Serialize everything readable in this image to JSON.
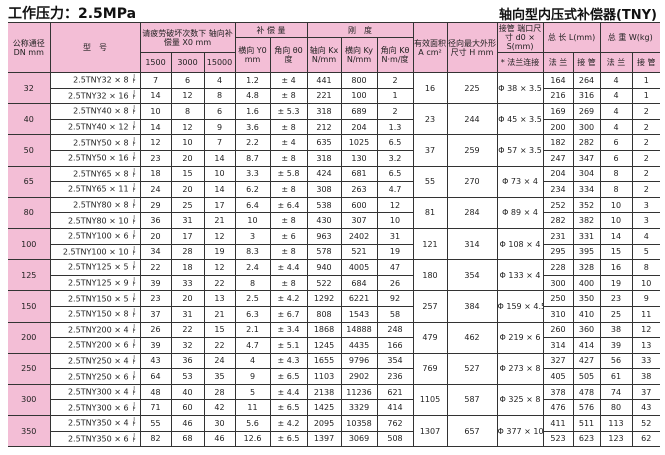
{
  "title_left": "工作压力：2.5MPa",
  "title_right": "轴向型内压式补偿器(TNY)",
  "header": {
    "dn": "公称通径DN mm",
    "model": "型　号",
    "fatigue": "请疲劳破坏次数下 轴向补偿量 X0 mm",
    "comp": "补 偿 量",
    "stiff": "刚　度",
    "area": "有效面积 A cm²",
    "h": "径向最大外形尺寸 H mm",
    "pipe": "接管 端口尺寸 d0 × S(mm)",
    "len": "总 长 L(mm)",
    "wt": "总 重 W(kg)",
    "y0": "横向 Y0 mm",
    "theta": "角向 θ0 度",
    "kx": "轴向 Kx N/mm",
    "ky": "横向 Ky N/mm",
    "kt": "角向 Kθ N·m/度",
    "c1500": "1500",
    "c3000": "3000",
    "c15000": "15000",
    "flange_conn": "* 法兰连接",
    "flange": "法 兰",
    "pipe_col": "接 管",
    "jf_top": "J",
    "jf_bot": "F"
  },
  "groups": [
    {
      "dn": "32",
      "area": "16",
      "h": "225",
      "pipe": "Φ 38 × 3.5",
      "rows": [
        [
          "2.5TNY32 × 8",
          "7",
          "6",
          "4",
          "1.2",
          "± 4",
          "441",
          "800",
          "2",
          "164",
          "264",
          "4",
          "1"
        ],
        [
          "2.5TNY32 × 16",
          "14",
          "12",
          "8",
          "4.8",
          "± 8",
          "221",
          "100",
          "1",
          "216",
          "316",
          "4",
          "1"
        ]
      ]
    },
    {
      "dn": "40",
      "area": "23",
      "h": "244",
      "pipe": "Φ 45 × 3.5",
      "rows": [
        [
          "2.5TNY40 × 8",
          "10",
          "8",
          "6",
          "1.6",
          "± 5.3",
          "318",
          "689",
          "2",
          "169",
          "269",
          "4",
          "2"
        ],
        [
          "2.5TNY40 × 12",
          "14",
          "12",
          "9",
          "3.6",
          "± 8",
          "212",
          "204",
          "1.3",
          "200",
          "300",
          "4",
          "2"
        ]
      ]
    },
    {
      "dn": "50",
      "area": "37",
      "h": "259",
      "pipe": "Φ 57 × 3.5",
      "rows": [
        [
          "2.5TNY50 × 8",
          "12",
          "10",
          "7",
          "2.2",
          "± 4",
          "635",
          "1025",
          "6.5",
          "182",
          "282",
          "6",
          "2"
        ],
        [
          "2.5TNY50 × 16",
          "23",
          "20",
          "14",
          "8.7",
          "± 8",
          "318",
          "130",
          "3.2",
          "247",
          "347",
          "6",
          "2"
        ]
      ]
    },
    {
      "dn": "65",
      "area": "55",
      "h": "270",
      "pipe": "Φ 73 × 4",
      "rows": [
        [
          "2.5TNY65 × 8",
          "18",
          "15",
          "10",
          "3.3",
          "± 5.8",
          "424",
          "681",
          "6.5",
          "204",
          "304",
          "8",
          "2"
        ],
        [
          "2.5TNY65 × 11",
          "24",
          "20",
          "14",
          "6.2",
          "± 8",
          "308",
          "263",
          "4.7",
          "234",
          "334",
          "8",
          "2"
        ]
      ]
    },
    {
      "dn": "80",
      "area": "81",
      "h": "284",
      "pipe": "Φ 89 × 4",
      "rows": [
        [
          "2.5TNY80 × 8",
          "29",
          "25",
          "17",
          "6.4",
          "± 6.4",
          "538",
          "600",
          "12",
          "252",
          "352",
          "10",
          "3"
        ],
        [
          "2.5TNY80 × 10",
          "36",
          "31",
          "21",
          "10",
          "± 8",
          "430",
          "307",
          "10",
          "282",
          "382",
          "10",
          "3"
        ]
      ]
    },
    {
      "dn": "100",
      "area": "121",
      "h": "314",
      "pipe": "Φ 108 × 4",
      "rows": [
        [
          "2.5TNY100 × 6",
          "20",
          "17",
          "12",
          "3",
          "± 6",
          "963",
          "2402",
          "31",
          "231",
          "331",
          "14",
          "4"
        ],
        [
          "2.5TNY100 × 10",
          "34",
          "28",
          "19",
          "8.3",
          "± 8",
          "578",
          "521",
          "19",
          "295",
          "395",
          "15",
          "5"
        ]
      ]
    },
    {
      "dn": "125",
      "area": "180",
      "h": "354",
      "pipe": "Φ 133 × 4",
      "rows": [
        [
          "2.5TNY125 × 5",
          "22",
          "18",
          "12",
          "2.4",
          "± 4.4",
          "940",
          "4005",
          "47",
          "228",
          "328",
          "16",
          "8"
        ],
        [
          "2.5TNY125 × 9",
          "39",
          "33",
          "22",
          "8",
          "± 8",
          "522",
          "684",
          "26",
          "300",
          "400",
          "19",
          "10"
        ]
      ]
    },
    {
      "dn": "150",
      "area": "257",
      "h": "384",
      "pipe": "Φ 159 × 4.5",
      "rows": [
        [
          "2.5TNY150 × 5",
          "23",
          "20",
          "13",
          "2.5",
          "± 4.2",
          "1292",
          "6221",
          "92",
          "250",
          "350",
          "23",
          "9"
        ],
        [
          "2.5TNY150 × 8",
          "37",
          "31",
          "21",
          "6.3",
          "± 6.7",
          "808",
          "1543",
          "58",
          "310",
          "410",
          "25",
          "11"
        ]
      ]
    },
    {
      "dn": "200",
      "area": "479",
      "h": "462",
      "pipe": "Φ 219 × 6",
      "rows": [
        [
          "2.5TNY200 × 4",
          "26",
          "22",
          "15",
          "2.1",
          "± 3.4",
          "1868",
          "14888",
          "248",
          "260",
          "360",
          "38",
          "12"
        ],
        [
          "2.5TNY200 × 6",
          "39",
          "32",
          "22",
          "4.7",
          "± 5.1",
          "1245",
          "4435",
          "166",
          "314",
          "414",
          "39",
          "13"
        ]
      ]
    },
    {
      "dn": "250",
      "area": "769",
      "h": "527",
      "pipe": "Φ 273 × 8",
      "rows": [
        [
          "2.5TNY250 × 4",
          "43",
          "36",
          "24",
          "4",
          "± 4.3",
          "1655",
          "9796",
          "354",
          "327",
          "427",
          "56",
          "33"
        ],
        [
          "2.5TNY250 × 6",
          "64",
          "53",
          "35",
          "9",
          "± 6.5",
          "1103",
          "2902",
          "236",
          "405",
          "505",
          "61",
          "38"
        ]
      ]
    },
    {
      "dn": "300",
      "area": "1105",
      "h": "587",
      "pipe": "Φ 325 × 8",
      "rows": [
        [
          "2.5TNY300 × 4",
          "48",
          "40",
          "28",
          "5",
          "± 4.4",
          "2138",
          "11236",
          "621",
          "378",
          "478",
          "74",
          "37"
        ],
        [
          "2.5TNY300 × 6",
          "71",
          "60",
          "42",
          "11",
          "± 6.5",
          "1425",
          "3329",
          "414",
          "476",
          "576",
          "80",
          "43"
        ]
      ]
    },
    {
      "dn": "350",
      "area": "1307",
      "h": "657",
      "pipe": "Φ 377 × 10",
      "rows": [
        [
          "2.5TNY350 × 4",
          "55",
          "46",
          "30",
          "5.6",
          "± 4.2",
          "2095",
          "10358",
          "762",
          "411",
          "511",
          "113",
          "52"
        ],
        [
          "2.5TNY350 × 6",
          "82",
          "68",
          "46",
          "12.6",
          "± 6.5",
          "1397",
          "3069",
          "508",
          "523",
          "623",
          "123",
          "62"
        ]
      ]
    }
  ],
  "colors": {
    "header_bg": "#f3bed6",
    "border": "#333333"
  }
}
